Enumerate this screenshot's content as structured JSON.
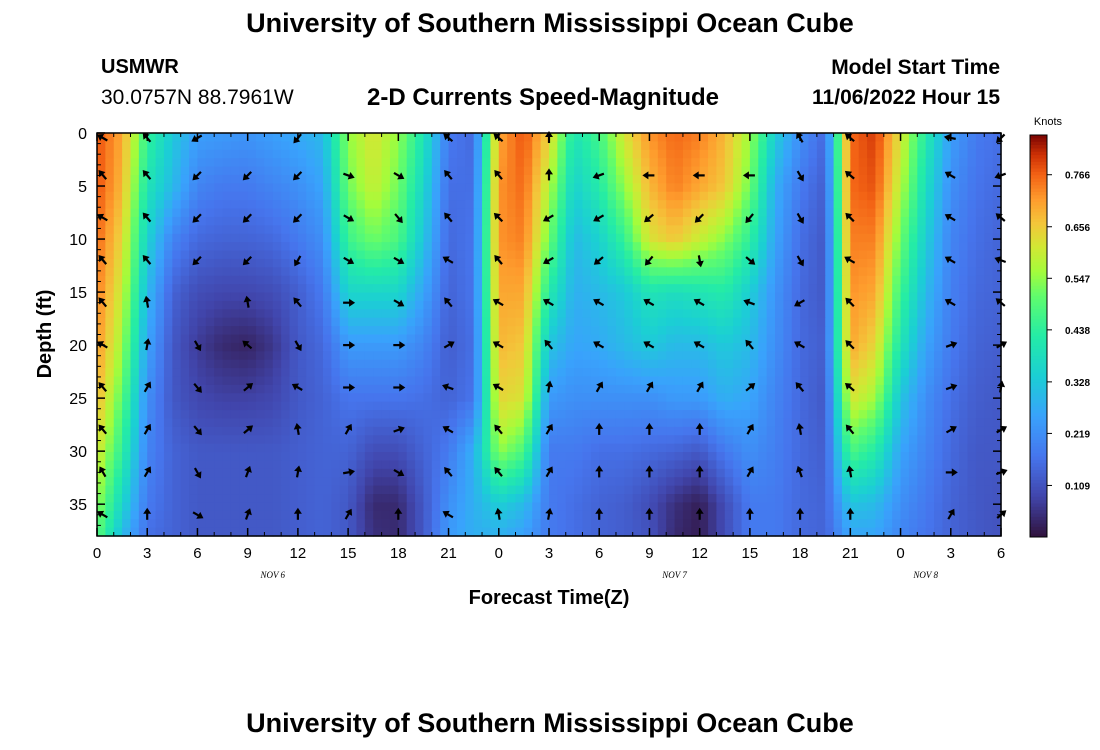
{
  "header": {
    "title": "University of Southern Mississippi Ocean Cube",
    "station": "USMWR",
    "coords": "30.0757N  88.7961W",
    "subtitle": "2-D Currents Speed-Magnitude",
    "model_start_label": "Model Start Time",
    "model_start_value": "11/06/2022 Hour 15"
  },
  "footer": {
    "title": "University of Southern Mississippi Ocean Cube"
  },
  "chart_data": {
    "type": "heatmap",
    "title": "2-D Currents Speed-Magnitude",
    "xlabel": "Forecast Time(Z)",
    "ylabel": "Depth (ft)",
    "x_ticks": [
      "0",
      "3",
      "6",
      "9",
      "12",
      "15",
      "18",
      "21",
      "0",
      "3",
      "6",
      "9",
      "12",
      "15",
      "18",
      "21",
      "0",
      "3",
      "6"
    ],
    "date_labels": [
      {
        "text": "NOV 6",
        "tick_index": 3.5
      },
      {
        "text": "NOV 7",
        "tick_index": 11.5
      },
      {
        "text": "NOV 8",
        "tick_index": 16.5
      }
    ],
    "y_ticks": [
      "0",
      "5",
      "10",
      "15",
      "20",
      "25",
      "30",
      "35"
    ],
    "ylim": [
      0,
      38
    ],
    "xlim_hours": [
      0,
      54
    ],
    "colorbar": {
      "label": "Knots",
      "ticks": [
        "0.766",
        "0.656",
        "0.547",
        "0.438",
        "0.328",
        "0.219",
        "0.109"
      ],
      "range": [
        0,
        0.85
      ]
    },
    "speed_grid": {
      "hours": [
        0,
        1.5,
        3,
        4.5,
        6,
        7.5,
        9,
        10.5,
        12,
        13.5,
        15,
        16.5,
        18,
        19.5,
        21,
        22.5,
        24,
        25.5,
        27,
        28.5,
        30,
        31.5,
        33,
        34.5,
        36,
        37.5,
        39,
        40.5,
        42,
        43.5,
        45,
        46.5,
        48,
        49.5,
        51,
        52.5,
        54
      ],
      "depths_ft": [
        0,
        5,
        10,
        15,
        20,
        25,
        30,
        35,
        38
      ],
      "knots": [
        [
          0.78,
          0.7,
          0.45,
          0.33,
          0.25,
          0.24,
          0.23,
          0.25,
          0.27,
          0.3,
          0.55,
          0.62,
          0.55,
          0.4,
          0.18,
          0.15,
          0.7,
          0.78,
          0.65,
          0.4,
          0.47,
          0.62,
          0.72,
          0.76,
          0.74,
          0.68,
          0.56,
          0.34,
          0.22,
          0.15,
          0.76,
          0.8,
          0.62,
          0.42,
          0.25,
          0.18,
          0.16
        ],
        [
          0.78,
          0.68,
          0.4,
          0.3,
          0.2,
          0.18,
          0.18,
          0.2,
          0.22,
          0.26,
          0.52,
          0.6,
          0.52,
          0.36,
          0.16,
          0.16,
          0.72,
          0.76,
          0.58,
          0.35,
          0.42,
          0.55,
          0.68,
          0.74,
          0.7,
          0.66,
          0.52,
          0.28,
          0.18,
          0.13,
          0.76,
          0.78,
          0.58,
          0.38,
          0.22,
          0.17,
          0.15
        ],
        [
          0.76,
          0.64,
          0.35,
          0.2,
          0.15,
          0.14,
          0.14,
          0.15,
          0.18,
          0.22,
          0.46,
          0.52,
          0.48,
          0.32,
          0.15,
          0.17,
          0.72,
          0.74,
          0.52,
          0.3,
          0.35,
          0.45,
          0.62,
          0.66,
          0.6,
          0.54,
          0.44,
          0.26,
          0.16,
          0.12,
          0.74,
          0.74,
          0.52,
          0.34,
          0.2,
          0.16,
          0.14
        ],
        [
          0.74,
          0.6,
          0.3,
          0.14,
          0.1,
          0.09,
          0.09,
          0.1,
          0.13,
          0.18,
          0.36,
          0.36,
          0.36,
          0.26,
          0.14,
          0.17,
          0.7,
          0.7,
          0.42,
          0.28,
          0.3,
          0.33,
          0.4,
          0.38,
          0.4,
          0.42,
          0.34,
          0.23,
          0.15,
          0.12,
          0.72,
          0.7,
          0.46,
          0.3,
          0.19,
          0.15,
          0.14
        ],
        [
          0.72,
          0.56,
          0.26,
          0.12,
          0.07,
          0.04,
          0.03,
          0.06,
          0.12,
          0.15,
          0.24,
          0.24,
          0.24,
          0.2,
          0.13,
          0.16,
          0.68,
          0.66,
          0.32,
          0.26,
          0.27,
          0.3,
          0.33,
          0.3,
          0.3,
          0.33,
          0.3,
          0.22,
          0.15,
          0.13,
          0.7,
          0.64,
          0.4,
          0.26,
          0.18,
          0.14,
          0.13
        ],
        [
          0.68,
          0.5,
          0.22,
          0.12,
          0.09,
          0.08,
          0.08,
          0.09,
          0.12,
          0.14,
          0.17,
          0.17,
          0.17,
          0.16,
          0.14,
          0.17,
          0.64,
          0.62,
          0.24,
          0.22,
          0.22,
          0.22,
          0.22,
          0.24,
          0.24,
          0.28,
          0.26,
          0.2,
          0.15,
          0.12,
          0.62,
          0.56,
          0.32,
          0.22,
          0.16,
          0.13,
          0.12
        ],
        [
          0.62,
          0.44,
          0.2,
          0.14,
          0.12,
          0.12,
          0.12,
          0.12,
          0.13,
          0.14,
          0.14,
          0.1,
          0.1,
          0.14,
          0.18,
          0.28,
          0.55,
          0.48,
          0.18,
          0.18,
          0.16,
          0.16,
          0.15,
          0.14,
          0.12,
          0.18,
          0.22,
          0.19,
          0.15,
          0.13,
          0.48,
          0.42,
          0.26,
          0.2,
          0.15,
          0.12,
          0.12
        ],
        [
          0.55,
          0.36,
          0.18,
          0.14,
          0.12,
          0.12,
          0.12,
          0.12,
          0.13,
          0.14,
          0.12,
          0.04,
          0.04,
          0.12,
          0.22,
          0.28,
          0.34,
          0.3,
          0.18,
          0.16,
          0.14,
          0.13,
          0.1,
          0.05,
          0.02,
          0.1,
          0.18,
          0.18,
          0.15,
          0.14,
          0.32,
          0.3,
          0.22,
          0.18,
          0.14,
          0.12,
          0.11
        ],
        [
          0.5,
          0.3,
          0.16,
          0.14,
          0.12,
          0.12,
          0.12,
          0.12,
          0.13,
          0.14,
          0.12,
          0.05,
          0.04,
          0.12,
          0.24,
          0.28,
          0.28,
          0.25,
          0.18,
          0.16,
          0.14,
          0.13,
          0.11,
          0.04,
          0.02,
          0.1,
          0.18,
          0.18,
          0.15,
          0.14,
          0.26,
          0.26,
          0.2,
          0.17,
          0.14,
          0.12,
          0.11
        ]
      ]
    },
    "vector_grid": {
      "hours": [
        0,
        1.5,
        3,
        4.5,
        6,
        7.5,
        9,
        10.5,
        12,
        13.5,
        15,
        16.5,
        18,
        19.5,
        21,
        22.5,
        24,
        25.5,
        27,
        28.5,
        30,
        31.5,
        33,
        34.5,
        36,
        37.5,
        39,
        40.5,
        42,
        43.5,
        45,
        46.5,
        48,
        49.5,
        51,
        52.5,
        54
      ],
      "depths_ft": [
        0,
        4,
        8,
        12,
        16,
        20,
        24,
        28,
        32,
        36
      ],
      "direction_deg": [
        [
          150,
          null,
          130,
          null,
          210,
          null,
          null,
          null,
          230,
          null,
          null,
          null,
          null,
          null,
          140,
          null,
          140,
          null,
          90,
          null,
          null,
          null,
          null,
          null,
          null,
          null,
          null,
          null,
          120,
          null,
          140,
          null,
          null,
          null,
          170,
          null,
          225
        ],
        [
          130,
          null,
          130,
          null,
          225,
          null,
          225,
          null,
          225,
          null,
          340,
          null,
          330,
          null,
          130,
          null,
          130,
          null,
          90,
          null,
          200,
          null,
          180,
          null,
          180,
          null,
          180,
          null,
          300,
          null,
          140,
          null,
          null,
          null,
          150,
          null,
          200
        ],
        [
          150,
          null,
          130,
          null,
          225,
          null,
          225,
          null,
          225,
          null,
          330,
          null,
          310,
          null,
          130,
          null,
          135,
          null,
          210,
          null,
          210,
          null,
          220,
          null,
          225,
          null,
          230,
          null,
          300,
          null,
          135,
          null,
          null,
          null,
          150,
          null,
          140
        ],
        [
          130,
          null,
          130,
          null,
          225,
          null,
          225,
          null,
          240,
          null,
          330,
          null,
          330,
          null,
          150,
          null,
          130,
          null,
          210,
          null,
          220,
          null,
          230,
          null,
          280,
          null,
          320,
          null,
          300,
          null,
          150,
          null,
          null,
          null,
          150,
          null,
          160
        ],
        [
          130,
          null,
          100,
          null,
          null,
          null,
          100,
          null,
          130,
          null,
          0,
          null,
          330,
          null,
          130,
          null,
          150,
          null,
          150,
          null,
          150,
          null,
          150,
          null,
          150,
          null,
          160,
          null,
          210,
          null,
          135,
          null,
          null,
          null,
          150,
          null,
          140
        ],
        [
          150,
          null,
          80,
          null,
          300,
          null,
          140,
          null,
          300,
          null,
          0,
          null,
          0,
          null,
          30,
          null,
          150,
          null,
          130,
          null,
          150,
          null,
          150,
          null,
          150,
          null,
          130,
          null,
          150,
          null,
          135,
          null,
          null,
          null,
          20,
          null,
          30
        ],
        [
          130,
          null,
          60,
          null,
          310,
          null,
          40,
          null,
          150,
          null,
          0,
          null,
          0,
          null,
          160,
          null,
          150,
          null,
          80,
          null,
          60,
          null,
          60,
          null,
          60,
          null,
          40,
          null,
          130,
          null,
          140,
          null,
          null,
          null,
          20,
          null,
          80
        ],
        [
          130,
          null,
          60,
          null,
          310,
          null,
          40,
          null,
          100,
          null,
          60,
          null,
          20,
          null,
          150,
          null,
          130,
          null,
          60,
          null,
          90,
          null,
          90,
          null,
          90,
          null,
          60,
          null,
          100,
          null,
          130,
          null,
          null,
          null,
          30,
          null,
          30
        ],
        [
          120,
          null,
          60,
          null,
          300,
          null,
          70,
          null,
          80,
          null,
          10,
          null,
          330,
          null,
          130,
          null,
          130,
          null,
          60,
          null,
          90,
          null,
          90,
          null,
          90,
          null,
          60,
          null,
          110,
          null,
          100,
          null,
          null,
          null,
          0,
          null,
          20
        ],
        [
          150,
          null,
          90,
          null,
          330,
          null,
          70,
          null,
          90,
          null,
          60,
          null,
          90,
          null,
          150,
          null,
          100,
          null,
          80,
          null,
          90,
          null,
          90,
          null,
          90,
          null,
          90,
          null,
          90,
          null,
          90,
          null,
          null,
          null,
          60,
          null,
          40
        ]
      ]
    }
  }
}
